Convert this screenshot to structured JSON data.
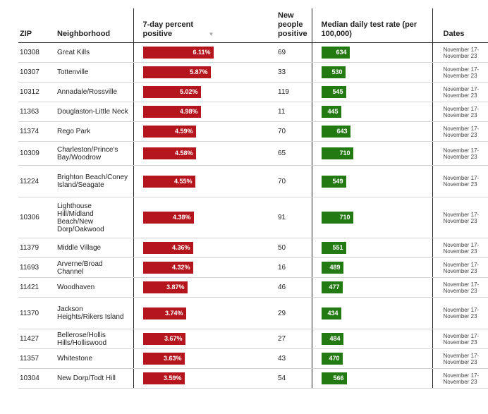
{
  "chart_data": {
    "type": "table",
    "columns": {
      "zip": "ZIP",
      "neighborhood": "Neighborhood",
      "percent_positive": "7-day percent positive",
      "new_positive": "New people positive",
      "test_rate": "Median daily test rate (per 100,000)",
      "dates": "Dates"
    },
    "sort_icon": "sort-desc-arrow",
    "colors": {
      "percent_bar": "#b5161d",
      "rate_bar": "#237a12"
    },
    "percent_scale_max": 6.11,
    "rate_scale_max": 710,
    "rows": [
      {
        "zip": "10308",
        "neighborhood": "Great Kills",
        "pct": 6.11,
        "pct_label": "6.11%",
        "new": "69",
        "rate": 634,
        "rate_label": "634",
        "dates": "November 17-November 23"
      },
      {
        "zip": "10307",
        "neighborhood": "Tottenville",
        "pct": 5.87,
        "pct_label": "5.87%",
        "new": "33",
        "rate": 530,
        "rate_label": "530",
        "dates": "November 17-November 23"
      },
      {
        "zip": "10312",
        "neighborhood": "Annadale/Rossville",
        "pct": 5.02,
        "pct_label": "5.02%",
        "new": "119",
        "rate": 545,
        "rate_label": "545",
        "dates": "November 17-November 23"
      },
      {
        "zip": "11363",
        "neighborhood": "Douglaston-Little Neck",
        "pct": 4.98,
        "pct_label": "4.98%",
        "new": "11",
        "rate": 445,
        "rate_label": "445",
        "dates": "November 17-November 23"
      },
      {
        "zip": "11374",
        "neighborhood": "Rego Park",
        "pct": 4.59,
        "pct_label": "4.59%",
        "new": "70",
        "rate": 643,
        "rate_label": "643",
        "dates": "November 17-November 23"
      },
      {
        "zip": "10309",
        "neighborhood": "Charleston/Prince's Bay/Woodrow",
        "pct": 4.58,
        "pct_label": "4.58%",
        "new": "65",
        "rate": 710,
        "rate_label": "710",
        "dates": "November 17-November 23"
      },
      {
        "zip": "11224",
        "neighborhood": "Brighton Beach/Coney Island/Seagate",
        "pct": 4.55,
        "pct_label": "4.55%",
        "new": "70",
        "rate": 549,
        "rate_label": "549",
        "dates": "November 17-November 23"
      },
      {
        "zip": "10306",
        "neighborhood": "Lighthouse Hill/Midland Beach/New Dorp/Oakwood",
        "pct": 4.38,
        "pct_label": "4.38%",
        "new": "91",
        "rate": 710,
        "rate_label": "710",
        "dates": "November 17-November 23"
      },
      {
        "zip": "11379",
        "neighborhood": "Middle Village",
        "pct": 4.36,
        "pct_label": "4.36%",
        "new": "50",
        "rate": 551,
        "rate_label": "551",
        "dates": "November 17-November 23"
      },
      {
        "zip": "11693",
        "neighborhood": "Arverne/Broad Channel",
        "pct": 4.32,
        "pct_label": "4.32%",
        "new": "16",
        "rate": 489,
        "rate_label": "489",
        "dates": "November 17-November 23"
      },
      {
        "zip": "11421",
        "neighborhood": "Woodhaven",
        "pct": 3.87,
        "pct_label": "3.87%",
        "new": "46",
        "rate": 477,
        "rate_label": "477",
        "dates": "November 17-November 23"
      },
      {
        "zip": "11370",
        "neighborhood": "Jackson Heights/Rikers Island",
        "pct": 3.74,
        "pct_label": "3.74%",
        "new": "29",
        "rate": 434,
        "rate_label": "434",
        "dates": "November 17-November 23"
      },
      {
        "zip": "11427",
        "neighborhood": "Bellerose/Hollis Hills/Holliswood",
        "pct": 3.67,
        "pct_label": "3.67%",
        "new": "27",
        "rate": 484,
        "rate_label": "484",
        "dates": "November 17-November 23"
      },
      {
        "zip": "11357",
        "neighborhood": "Whitestone",
        "pct": 3.63,
        "pct_label": "3.63%",
        "new": "43",
        "rate": 470,
        "rate_label": "470",
        "dates": "November 17-November 23"
      },
      {
        "zip": "10304",
        "neighborhood": "New Dorp/Todt Hill",
        "pct": 3.59,
        "pct_label": "3.59%",
        "new": "54",
        "rate": 566,
        "rate_label": "566",
        "dates": "November 17-November 23"
      }
    ]
  }
}
